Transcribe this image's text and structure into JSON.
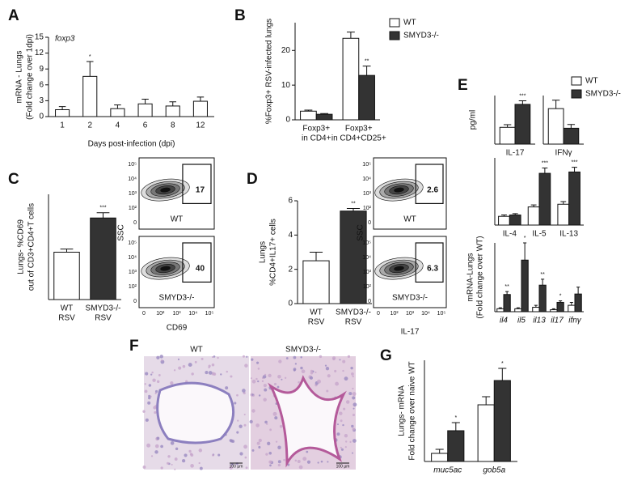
{
  "chart_data": [
    {
      "type": "bar",
      "panel": "A",
      "title": "foxp3",
      "ylabel": [
        "mRNA - Lungs",
        "(Fold change over 1dpi)"
      ],
      "xlabel": "Days post-infection (dpi)",
      "categories": [
        [
          "1"
        ],
        [
          "2"
        ],
        [
          "4"
        ],
        [
          "6"
        ],
        [
          "8"
        ],
        [
          "12"
        ]
      ],
      "series": [
        {
          "color": "#ffffff",
          "values": [
            1.3,
            7.6,
            1.5,
            2.4,
            2.0,
            2.9
          ],
          "errors": [
            0.6,
            2.8,
            0.7,
            0.9,
            0.8,
            0.8
          ],
          "annotations": [
            null,
            "*",
            null,
            null,
            null,
            null
          ]
        }
      ],
      "ylim": [
        0,
        15
      ],
      "yticks": [
        0,
        3,
        6,
        9,
        12,
        15
      ]
    },
    {
      "type": "bar",
      "panel": "B",
      "ylabel": [
        "%Foxp3+ RSV-infected lungs"
      ],
      "categories": [
        [
          "Foxp3+",
          "in CD4+"
        ],
        [
          "Foxp3+",
          "in CD4+CD25+"
        ]
      ],
      "series": [
        {
          "name": "WT",
          "color": "#ffffff",
          "values": [
            2.5,
            23.5
          ],
          "errors": [
            0.3,
            1.8
          ],
          "annotations": [
            null,
            null
          ]
        },
        {
          "name": "SMYD3-/-",
          "color": "#333333",
          "values": [
            1.6,
            12.8
          ],
          "errors": [
            0.2,
            2.7
          ],
          "annotations": [
            null,
            "**"
          ]
        }
      ],
      "ylim": [
        0,
        28
      ],
      "yticks": [
        0,
        10,
        20
      ],
      "legend": true
    },
    {
      "type": "bar",
      "panel": "C",
      "ylabel": [
        "Lungs- %CD69",
        "out of CD3+CD4+T cells"
      ],
      "categories": [
        [
          "WT",
          "RSV"
        ],
        [
          "SMYD3-/-",
          "RSV"
        ]
      ],
      "series": [
        {
          "colors": [
            "#ffffff",
            "#333333"
          ],
          "values": [
            18,
            31
          ],
          "errors": [
            1.2,
            2.0
          ],
          "annotations": [
            null,
            "***"
          ]
        }
      ],
      "ylim": [
        0,
        40
      ],
      "yticks": []
    },
    {
      "type": "bar",
      "panel": "D",
      "ylabel": [
        "Lungs",
        "%CD4+IL17+ cells"
      ],
      "categories": [
        [
          "WT",
          "RSV"
        ],
        [
          "SMYD3-/-",
          "RSV"
        ]
      ],
      "series": [
        {
          "colors": [
            "#ffffff",
            "#333333"
          ],
          "values": [
            2.5,
            5.4
          ],
          "errors": [
            0.5,
            0.15
          ],
          "annotations": [
            null,
            "**"
          ]
        }
      ],
      "ylim": [
        0,
        6
      ],
      "yticks": [
        0,
        2,
        4,
        6
      ]
    },
    {
      "type": "bar",
      "panel": "E",
      "ylabel": [
        "pg/ml"
      ],
      "categories": [
        [
          "IL-17"
        ]
      ],
      "series": [
        {
          "name": "WT",
          "color": "#ffffff",
          "values": [
            1900
          ],
          "errors": [
            300
          ],
          "annotations": [
            null
          ]
        },
        {
          "name": "SMYD3-/-",
          "color": "#333333",
          "values": [
            4500
          ],
          "errors": [
            400
          ],
          "annotations": [
            "***"
          ]
        }
      ],
      "ylim": [
        0,
        5500
      ],
      "yticks": [],
      "legend": true
    },
    {
      "type": "bar",
      "categories": [
        [
          "IFNγ"
        ]
      ],
      "series": [
        {
          "color": "#ffffff",
          "values": [
            1900
          ],
          "errors": [
            450
          ],
          "annotations": [
            null
          ]
        },
        {
          "color": "#333333",
          "values": [
            850
          ],
          "errors": [
            200
          ],
          "annotations": [
            null
          ]
        }
      ],
      "ylim": [
        0,
        2600
      ],
      "yticks": []
    },
    {
      "type": "bar",
      "categories": [
        [
          "IL-4"
        ],
        [
          "IL-5"
        ],
        [
          "IL-13"
        ]
      ],
      "series": [
        {
          "color": "#ffffff",
          "values": [
            650,
            1350,
            1550
          ],
          "errors": [
            100,
            150,
            200
          ],
          "annotations": [
            null,
            null,
            null
          ]
        },
        {
          "color": "#333333",
          "values": [
            750,
            3850,
            3950
          ],
          "errors": [
            100,
            400,
            350
          ],
          "annotations": [
            null,
            "***",
            "***"
          ]
        }
      ],
      "ylim": [
        0,
        5000
      ],
      "yticks": []
    },
    {
      "type": "bar",
      "ylabel": [
        "mRNA-Lungs",
        "(Fold change over WT)"
      ],
      "italic_categories": true,
      "categories": [
        [
          "il4"
        ],
        [
          "il5"
        ],
        [
          "il13"
        ],
        [
          "il17"
        ],
        [
          "ifnγ"
        ]
      ],
      "series": [
        {
          "color": "#ffffff",
          "values": [
            0.6,
            0.6,
            0.9,
            0.4,
            1.3
          ],
          "errors": [
            0.2,
            0.2,
            0.4,
            0.2,
            0.6
          ],
          "annotations": [
            null,
            null,
            null,
            null,
            null
          ]
        },
        {
          "color": "#333333",
          "values": [
            3.5,
            10.5,
            5.4,
            1.9,
            3.6
          ],
          "errors": [
            0.6,
            3.5,
            1.2,
            0.3,
            1.4
          ],
          "annotations": [
            "**",
            "*",
            "**",
            "*",
            null
          ]
        }
      ],
      "ylim": [
        0,
        14
      ],
      "yticks": []
    },
    {
      "type": "bar",
      "panel": "G",
      "ylabel": [
        "Lungs- mRNA",
        "Fold change over naive WT"
      ],
      "italic_categories": true,
      "categories": [
        [
          "muc5ac"
        ],
        [
          "gob5a"
        ]
      ],
      "series": [
        {
          "color": "#ffffff",
          "values": [
            10,
            70
          ],
          "errors": [
            5,
            10
          ],
          "annotations": [
            null,
            null
          ]
        },
        {
          "color": "#333333",
          "values": [
            38,
            100
          ],
          "errors": [
            10,
            15
          ],
          "annotations": [
            "*",
            "*"
          ]
        }
      ],
      "ylim": [
        0,
        125
      ],
      "yticks": []
    }
  ],
  "flow_plots": [
    {
      "ylabel": "SSC",
      "xlabel": "CD69",
      "xticks": [
        "0",
        "10²",
        "10³",
        "10⁴",
        "10⁵"
      ],
      "yticks": [
        "10⁵",
        "10⁴",
        "10³",
        "10²",
        "0"
      ],
      "plots": [
        {
          "gate": "17",
          "label": "WT"
        },
        {
          "gate": "40",
          "label": "SMYD3-/-"
        }
      ]
    },
    {
      "ylabel": "SSC",
      "xlabel": "IL-17",
      "xticks": [
        "0",
        "10²",
        "10³",
        "10⁴",
        "10⁵"
      ],
      "yticks": [
        "10⁵",
        "10⁴",
        "10³",
        "10²",
        "0"
      ],
      "plots": [
        {
          "gate": "2.6",
          "label": "WT"
        },
        {
          "gate": "6.3",
          "label": "SMYD3-/-"
        }
      ]
    }
  ],
  "histology": {
    "panel": "F",
    "images": [
      {
        "label": "WT",
        "scale": "100 µm"
      },
      {
        "label": "SMYD3-/-",
        "scale": "100 µm"
      }
    ]
  }
}
